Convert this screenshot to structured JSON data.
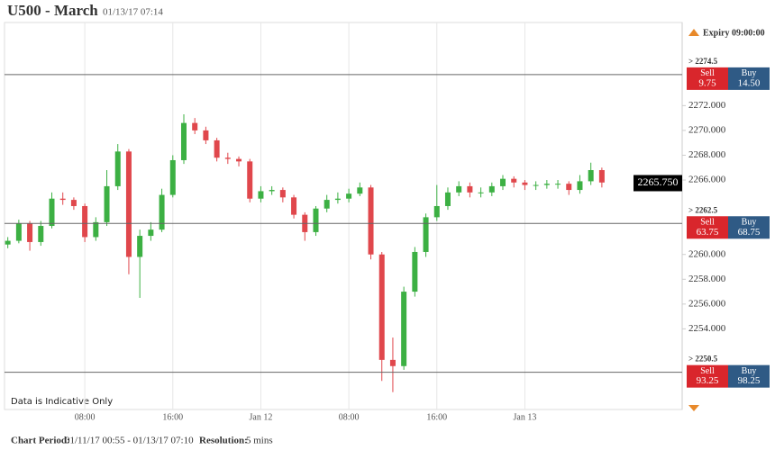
{
  "header": {
    "title": "U500 - March",
    "timestamp": "01/13/17 07:14"
  },
  "expiry": "Expiry 09:00:00",
  "notice": "Data is Indicative Only",
  "footer": {
    "period_label": "Chart Period:",
    "period": "01/11/17 00:55 - 01/13/17 07:10",
    "resolution_label": "Resolution:",
    "resolution": "5 mins"
  },
  "levels": [
    {
      "label": "> 2274.5",
      "value": 2274.5,
      "sell_label": "Sell",
      "sell": "9.75",
      "buy_label": "Buy",
      "buy": "14.50"
    },
    {
      "label": "> 2262.5",
      "value": 2262.5,
      "sell_label": "Sell",
      "sell": "63.75",
      "buy_label": "Buy",
      "buy": "68.75"
    },
    {
      "label": "> 2250.5",
      "value": 2250.5,
      "sell_label": "Sell",
      "sell": "93.25",
      "buy_label": "Buy",
      "buy": "98.25"
    }
  ],
  "chart_data": {
    "type": "candlestick",
    "up_color": "#3cb043",
    "down_color": "#e0474c",
    "grid": true,
    "last": {
      "value": 2265.75,
      "label": "2265.750"
    },
    "x": [
      1,
      2,
      3,
      4,
      5,
      6,
      7,
      8,
      9,
      10,
      11,
      12,
      13,
      14,
      15,
      16,
      17,
      18,
      19,
      20,
      21,
      22,
      23,
      24,
      25,
      26,
      27,
      28,
      29,
      30,
      31,
      32,
      33,
      34,
      35,
      36,
      37,
      38,
      39,
      40,
      41,
      42,
      43,
      44,
      45,
      46,
      47,
      48,
      49,
      50,
      51,
      52,
      53,
      54,
      55
    ],
    "open": [
      2260.8,
      2261.1,
      2262.5,
      2261.0,
      2262.3,
      2264.5,
      2264.4,
      2263.9,
      2261.4,
      2262.6,
      2265.5,
      2268.3,
      2259.8,
      2261.5,
      2262.0,
      2264.8,
      2267.6,
      2270.6,
      2270.0,
      2269.2,
      2267.8,
      2267.7,
      2267.5,
      2264.5,
      2265.1,
      2265.2,
      2264.6,
      2263.2,
      2261.8,
      2263.7,
      2264.4,
      2264.5,
      2264.9,
      2265.4,
      2260.0,
      2251.5,
      2251.0,
      2257.0,
      2260.2,
      2263.0,
      2263.9,
      2265.0,
      2265.5,
      2265.0,
      2265.0,
      2265.5,
      2266.1,
      2265.8,
      2265.6,
      2265.6,
      2265.7,
      2265.7,
      2265.2,
      2265.9,
      2266.8
    ],
    "high": [
      2261.4,
      2262.8,
      2262.7,
      2262.7,
      2265.0,
      2265.0,
      2264.6,
      2264.1,
      2263.0,
      2266.8,
      2268.9,
      2268.5,
      2262.0,
      2262.6,
      2265.3,
      2268.0,
      2271.3,
      2271.0,
      2270.3,
      2269.4,
      2268.2,
      2267.9,
      2267.7,
      2265.5,
      2265.5,
      2265.4,
      2264.8,
      2263.4,
      2263.9,
      2264.8,
      2265.0,
      2265.3,
      2265.8,
      2265.6,
      2260.2,
      2253.3,
      2257.4,
      2260.6,
      2263.3,
      2265.6,
      2265.4,
      2265.9,
      2265.8,
      2265.4,
      2265.8,
      2266.4,
      2266.3,
      2266.0,
      2265.9,
      2266.0,
      2266.0,
      2265.9,
      2266.4,
      2267.4,
      2267.0
    ],
    "low": [
      2260.5,
      2260.9,
      2260.3,
      2260.7,
      2262.1,
      2264.0,
      2263.6,
      2261.0,
      2261.1,
      2262.3,
      2265.2,
      2258.4,
      2256.5,
      2261.1,
      2261.8,
      2264.6,
      2267.3,
      2269.7,
      2268.9,
      2267.5,
      2267.3,
      2267.1,
      2264.2,
      2264.2,
      2264.8,
      2264.2,
      2262.9,
      2261.1,
      2261.5,
      2263.4,
      2264.1,
      2264.2,
      2264.7,
      2259.6,
      2249.8,
      2248.9,
      2250.7,
      2256.6,
      2259.8,
      2262.7,
      2263.6,
      2264.7,
      2264.6,
      2264.6,
      2264.7,
      2265.2,
      2265.4,
      2265.2,
      2265.2,
      2265.3,
      2265.3,
      2264.8,
      2264.9,
      2265.6,
      2265.4
    ],
    "close": [
      2261.1,
      2262.5,
      2261.0,
      2262.3,
      2264.5,
      2264.4,
      2263.9,
      2261.4,
      2262.6,
      2265.5,
      2268.3,
      2259.8,
      2261.5,
      2262.0,
      2264.8,
      2267.6,
      2270.6,
      2270.0,
      2269.2,
      2267.8,
      2267.7,
      2267.5,
      2264.5,
      2265.1,
      2265.2,
      2264.6,
      2263.2,
      2261.8,
      2263.7,
      2264.4,
      2264.5,
      2264.9,
      2265.4,
      2260.0,
      2251.5,
      2251.0,
      2257.0,
      2260.2,
      2263.0,
      2263.9,
      2265.0,
      2265.5,
      2265.0,
      2265.0,
      2265.5,
      2266.1,
      2265.8,
      2265.6,
      2265.6,
      2265.7,
      2265.7,
      2265.2,
      2265.9,
      2266.8,
      2265.8
    ],
    "xlim": [
      0.7,
      62.3
    ],
    "ylim": [
      2247.5,
      2278.7
    ],
    "xticks": [
      {
        "value": 8,
        "label": "08:00"
      },
      {
        "value": 16,
        "label": "16:00"
      },
      {
        "value": 24,
        "label": "Jan 12"
      },
      {
        "value": 32,
        "label": "08:00"
      },
      {
        "value": 40,
        "label": "16:00"
      },
      {
        "value": 48,
        "label": "Jan 13"
      }
    ],
    "yticks": [
      {
        "value": 2254,
        "label": "2254.000"
      },
      {
        "value": 2256,
        "label": "2256.000"
      },
      {
        "value": 2258,
        "label": "2258.000"
      },
      {
        "value": 2260,
        "label": "2260.000"
      },
      {
        "value": 2266,
        "label": "2266.000"
      },
      {
        "value": 2268,
        "label": "2268.000"
      },
      {
        "value": 2270,
        "label": "2270.000"
      },
      {
        "value": 2272,
        "label": "2272.000"
      }
    ]
  }
}
